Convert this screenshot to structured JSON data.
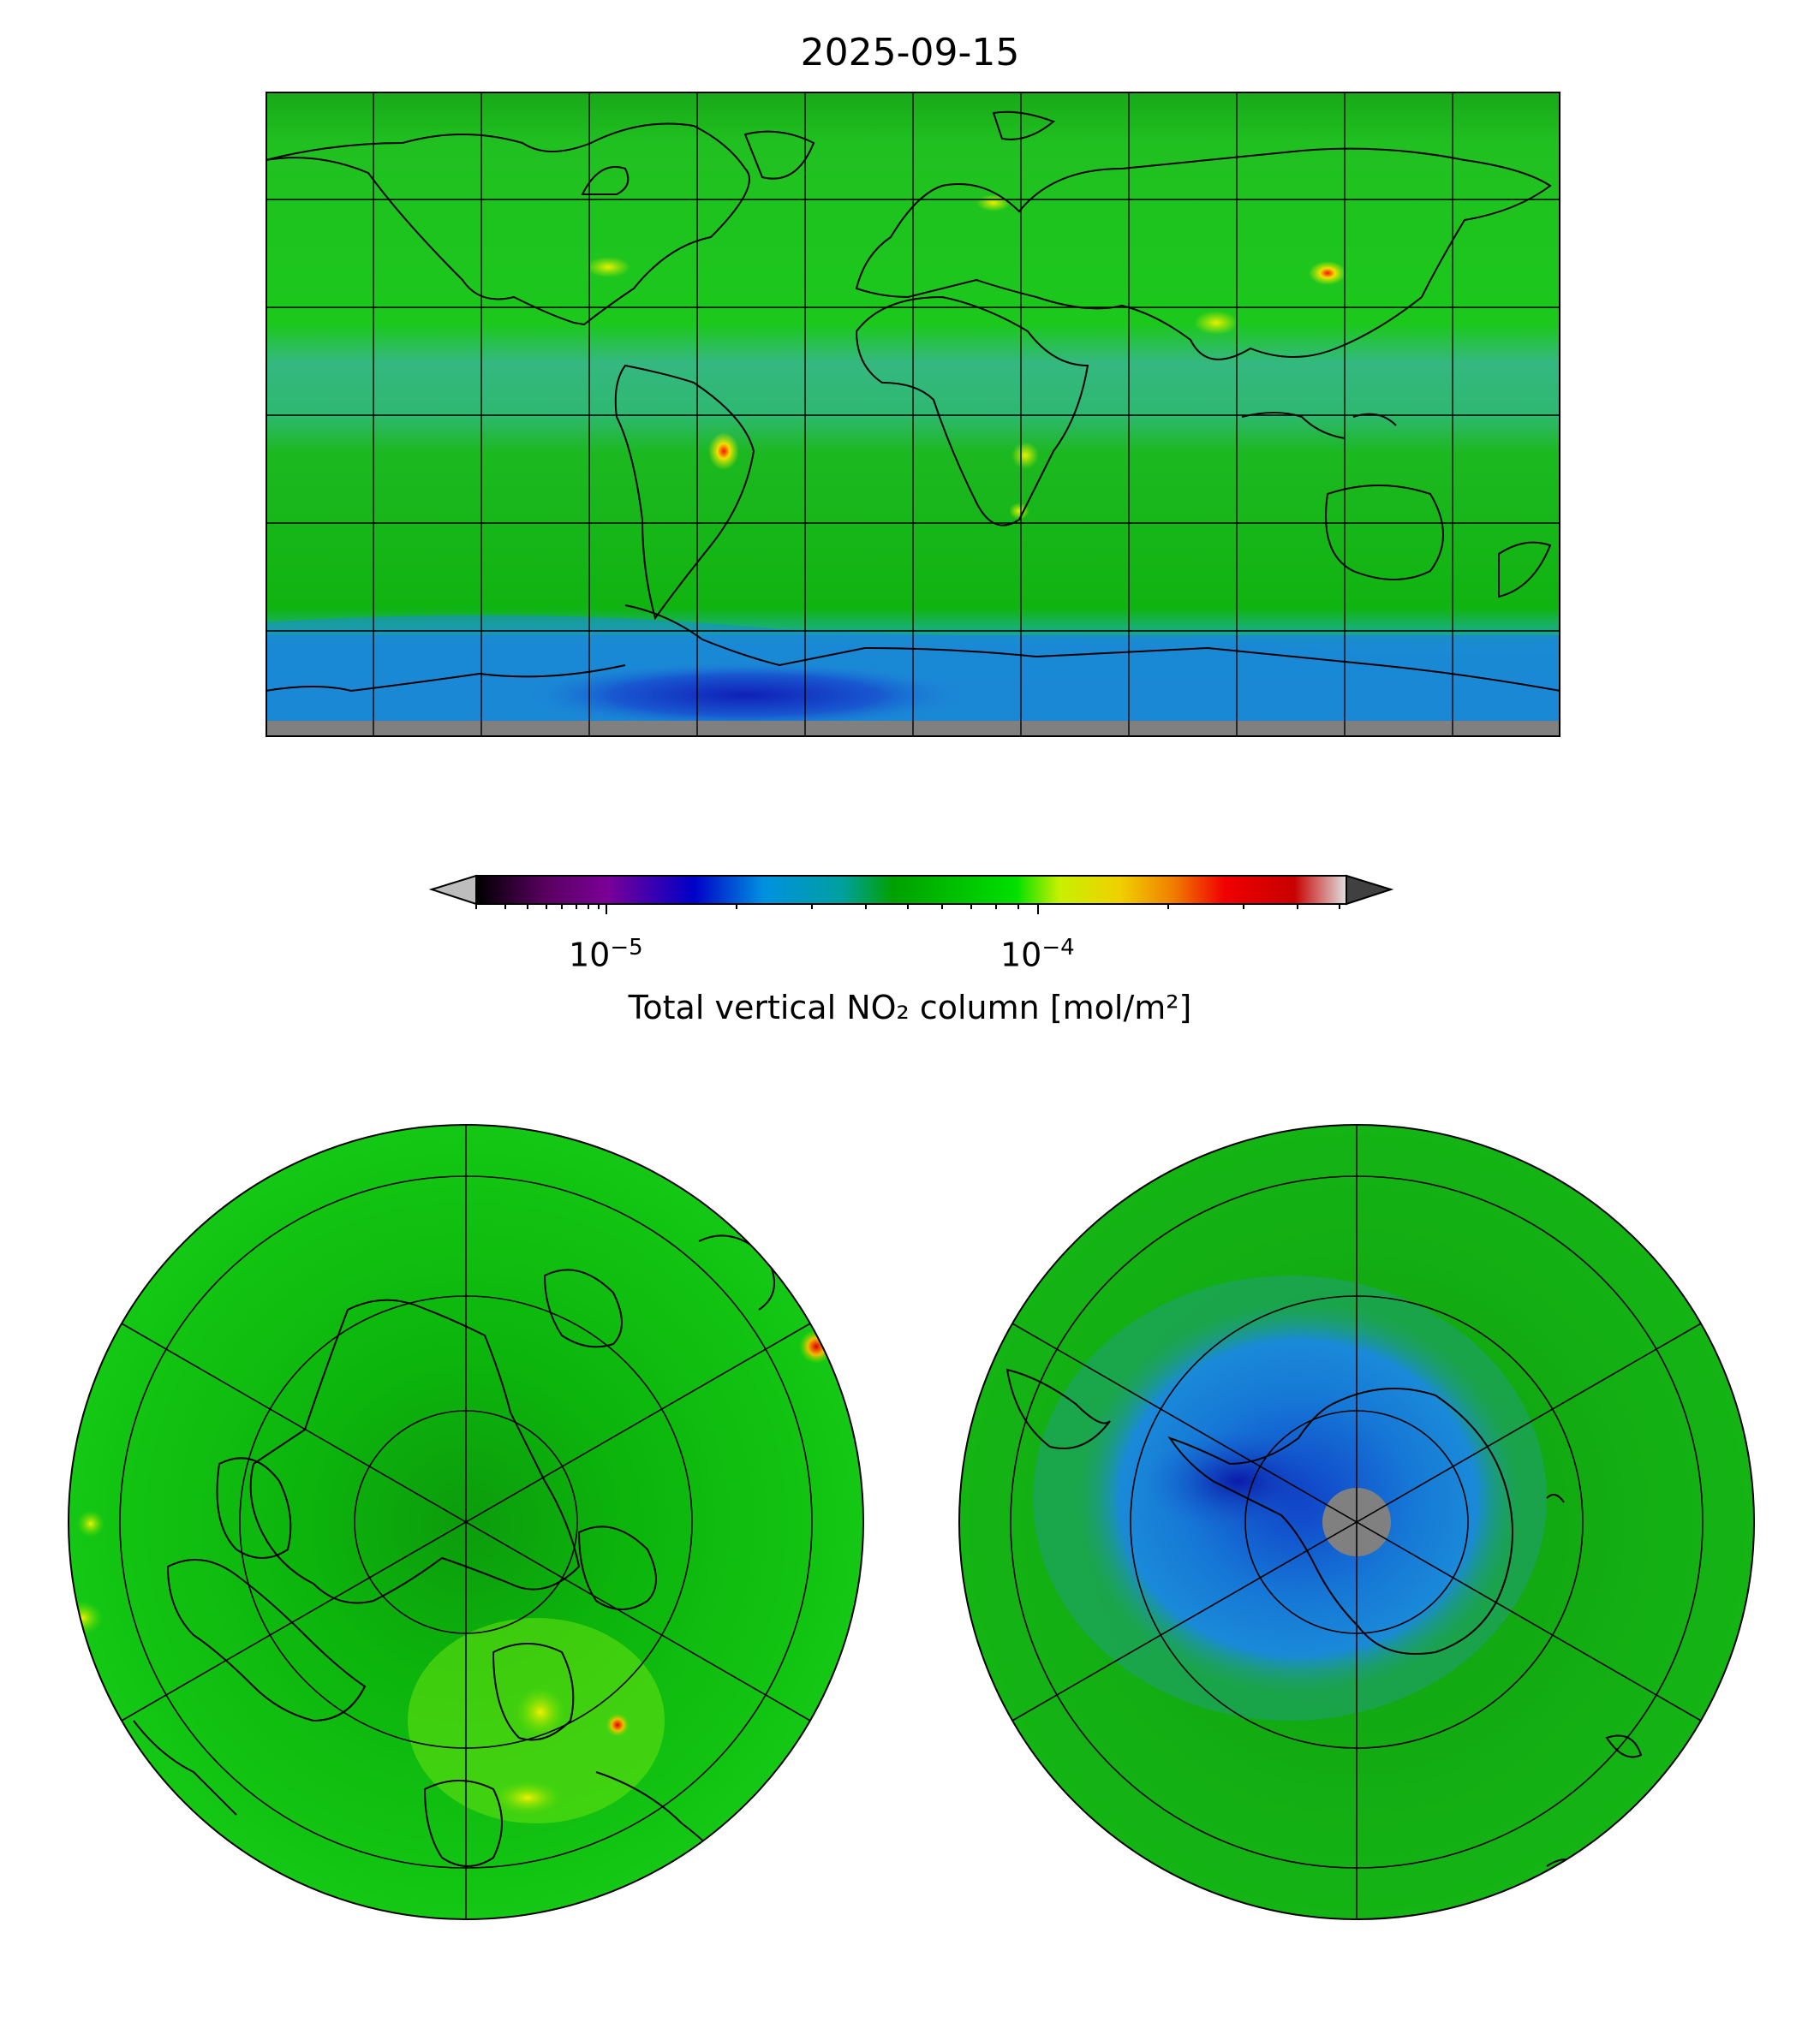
{
  "title": "2025-09-15",
  "colorbar": {
    "label": "Total vertical NO₂ column [mol/m²]",
    "ticks": [
      {
        "base": "10",
        "exp": "−5"
      },
      {
        "base": "10",
        "exp": "−4"
      }
    ],
    "scale": "log",
    "range": [
      5e-06,
      0.0005
    ],
    "extend": "both",
    "colors": [
      "#000000",
      "#7a0096",
      "#0000c8",
      "#0090e0",
      "#00a0a0",
      "#00a000",
      "#00e000",
      "#d8f000",
      "#f0d000",
      "#f08000",
      "#f00000",
      "#c80000",
      "#e0e0e0"
    ]
  },
  "panels": {
    "global": {
      "projection": "plate-carree",
      "background": "#1fc01f",
      "antarctic_color": "#1a8ad8",
      "missing_color": "#808080"
    },
    "north": {
      "projection": "north-polar-stereo",
      "background": "#10c810"
    },
    "south": {
      "projection": "south-polar-stereo",
      "background": "#10b010",
      "inner_color": "#1577d6",
      "missing_color": "#808080"
    }
  }
}
